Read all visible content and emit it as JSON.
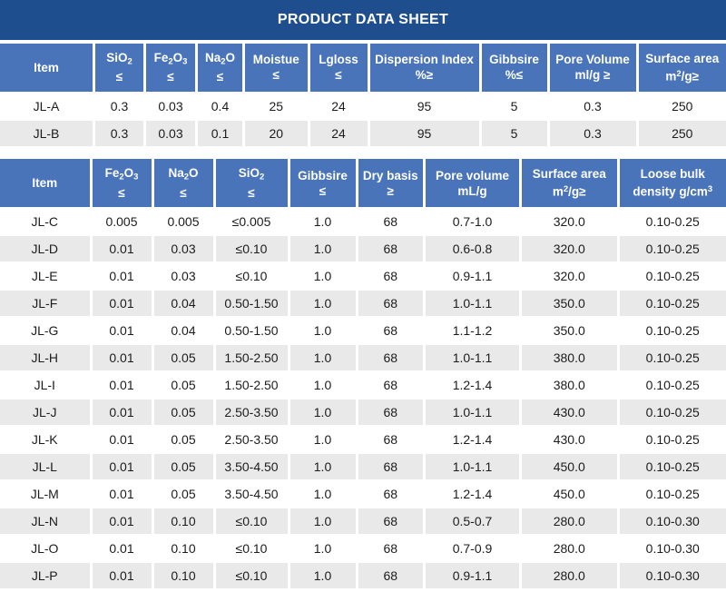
{
  "title": "PRODUCT DATA SHEET",
  "colors": {
    "title_bar": "#1F4E8F",
    "header": "#4A74B9",
    "header_text": "#FFFFFF",
    "row": "#FFFFFF",
    "row_alt": "#E9E9E9",
    "cell_text": "#1C1C1C"
  },
  "table1": {
    "columns": [
      "Item",
      "SiO<sub>2</sub><br>≤",
      "Fe<sub>2</sub>O<sub>3</sub><br>≤",
      "Na<sub>2</sub>O<br>≤",
      "Moistue<br>≤",
      "Lgloss<br>≤",
      "Dispersion Index<br>%≥",
      "Gibbsire<br>%≤",
      "Pore Volume<br>ml/g ≥",
      "Surface area<br>m<sup>2</sup>/g≥"
    ],
    "rows": [
      [
        "JL-A",
        "0.3",
        "0.03",
        "0.4",
        "25",
        "24",
        "95",
        "5",
        "0.3",
        "250"
      ],
      [
        "JL-B",
        "0.3",
        "0.03",
        "0.1",
        "20",
        "24",
        "95",
        "5",
        "0.3",
        "250"
      ]
    ]
  },
  "table2": {
    "columns": [
      "Item",
      "Fe<sub>2</sub>O<sub>3</sub><br>≤",
      "Na<sub>2</sub>O<br>≤",
      "SiO<sub>2</sub><br>≤",
      "Gibbsire<br>≤",
      "Dry basis<br>≥",
      "Pore volume<br>mL/g",
      "Surface area<br>m<sup>2</sup>/g≥",
      "Loose bulk<br>density g/cm<sup>3</sup>"
    ],
    "rows": [
      [
        "JL-C",
        "0.005",
        "0.005",
        "≤0.005",
        "1.0",
        "68",
        "0.7-1.0",
        "320.0",
        "0.10-0.25"
      ],
      [
        "JL-D",
        "0.01",
        "0.03",
        "≤0.10",
        "1.0",
        "68",
        "0.6-0.8",
        "320.0",
        "0.10-0.25"
      ],
      [
        "JL-E",
        "0.01",
        "0.03",
        "≤0.10",
        "1.0",
        "68",
        "0.9-1.1",
        "320.0",
        "0.10-0.25"
      ],
      [
        "JL-F",
        "0.01",
        "0.04",
        "0.50-1.50",
        "1.0",
        "68",
        "1.0-1.1",
        "350.0",
        "0.10-0.25"
      ],
      [
        "JL-G",
        "0.01",
        "0.04",
        "0.50-1.50",
        "1.0",
        "68",
        "1.1-1.2",
        "350.0",
        "0.10-0.25"
      ],
      [
        "JL-H",
        "0.01",
        "0.05",
        "1.50-2.50",
        "1.0",
        "68",
        "1.0-1.1",
        "380.0",
        "0.10-0.25"
      ],
      [
        "JL-I",
        "0.01",
        "0.05",
        "1.50-2.50",
        "1.0",
        "68",
        "1.2-1.4",
        "380.0",
        "0.10-0.25"
      ],
      [
        "JL-J",
        "0.01",
        "0.05",
        "2.50-3.50",
        "1.0",
        "68",
        "1.0-1.1",
        "430.0",
        "0.10-0.25"
      ],
      [
        "JL-K",
        "0.01",
        "0.05",
        "2.50-3.50",
        "1.0",
        "68",
        "1.2-1.4",
        "430.0",
        "0.10-0.25"
      ],
      [
        "JL-L",
        "0.01",
        "0.05",
        "3.50-4.50",
        "1.0",
        "68",
        "1.0-1.1",
        "450.0",
        "0.10-0.25"
      ],
      [
        "JL-M",
        "0.01",
        "0.05",
        "3.50-4.50",
        "1.0",
        "68",
        "1.2-1.4",
        "450.0",
        "0.10-0.25"
      ],
      [
        "JL-N",
        "0.01",
        "0.10",
        "≤0.10",
        "1.0",
        "68",
        "0.5-0.7",
        "280.0",
        "0.10-0.30"
      ],
      [
        "JL-O",
        "0.01",
        "0.10",
        "≤0.10",
        "1.0",
        "68",
        "0.7-0.9",
        "280.0",
        "0.10-0.30"
      ],
      [
        "JL-P",
        "0.01",
        "0.10",
        "≤0.10",
        "1.0",
        "68",
        "0.9-1.1",
        "280.0",
        "0.10-0.30"
      ]
    ]
  }
}
